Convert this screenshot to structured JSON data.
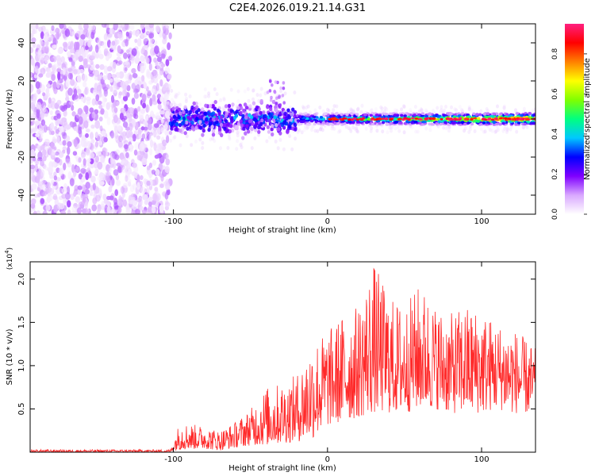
{
  "figure_title": "C2E4.2026.019.21.14.G31",
  "chart_data": [
    {
      "type": "heatmap",
      "panel": "spectrogram",
      "xlabel": "Height of straight line (km)",
      "ylabel": "Frequency (Hz)",
      "xlim": [
        -193,
        135
      ],
      "ylim": [
        -50,
        50
      ],
      "xticks": [
        -100,
        0,
        100
      ],
      "xtick_labels": [
        "-100",
        "0",
        "100"
      ],
      "yticks": [
        -40,
        -20,
        0,
        20,
        40
      ],
      "ytick_labels": [
        "-40",
        "-20",
        "0",
        "20",
        "40"
      ],
      "colorbar": {
        "label": "Normalized spectral amplitude",
        "range": [
          0.0,
          0.95
        ],
        "ticks": [
          0.0,
          0.2,
          0.4,
          0.6,
          0.8
        ],
        "tick_labels": [
          "0.0",
          "0.2",
          "0.4",
          "0.6",
          "0.8"
        ],
        "colormap": [
          "#ffffff",
          "#d9a8ff",
          "#7f00ff",
          "#0000ff",
          "#00c8ff",
          "#00ff80",
          "#80ff00",
          "#ffff00",
          "#ff8000",
          "#ff0000",
          "#ff2080"
        ]
      },
      "regions": [
        {
          "name": "noise",
          "x_range": [
            -193,
            -102
          ],
          "freq_range": [
            -50,
            50
          ],
          "amplitude": [
            0.02,
            0.15
          ]
        },
        {
          "name": "onset",
          "x_range": [
            -102,
            -20
          ],
          "center_freq": 0,
          "half_width_hz": 8,
          "amplitude": [
            0.1,
            0.45
          ]
        },
        {
          "name": "carrier",
          "x_range": [
            -20,
            135
          ],
          "center_freq": 0,
          "half_width_hz": 3,
          "amplitude": [
            0.4,
            0.95
          ]
        }
      ]
    },
    {
      "type": "line",
      "panel": "snr",
      "xlabel": "Height of straight line (km)",
      "ylabel": "SNR (10 * v/v)",
      "scale_label": "(x10",
      "scale_exponent": "4",
      "xlim": [
        -193,
        135
      ],
      "ylim": [
        0,
        2.2
      ],
      "xticks": [
        -100,
        0,
        100
      ],
      "xtick_labels": [
        "-100",
        "0",
        "100"
      ],
      "yticks": [
        0.5,
        1.0,
        1.5,
        2.0
      ],
      "ytick_labels": [
        "0.5",
        "1.0",
        "1.5",
        "2.0"
      ],
      "line_color": "#ff2a2a",
      "envelope": {
        "x": [
          -193,
          -102,
          -96,
          -80,
          -70,
          -60,
          -50,
          -40,
          -30,
          -20,
          -10,
          0,
          10,
          20,
          30,
          40,
          50,
          60,
          70,
          80,
          90,
          100,
          110,
          120,
          135
        ],
        "low": [
          0.0,
          0.0,
          0.03,
          0.04,
          0.02,
          0.05,
          0.08,
          0.08,
          0.1,
          0.12,
          0.15,
          0.3,
          0.35,
          0.4,
          0.45,
          0.45,
          0.45,
          0.5,
          0.5,
          0.45,
          0.45,
          0.45,
          0.5,
          0.45,
          0.45
        ],
        "high": [
          0.03,
          0.03,
          0.35,
          0.3,
          0.25,
          0.35,
          0.5,
          0.75,
          0.8,
          0.9,
          1.3,
          1.4,
          1.6,
          1.7,
          2.2,
          1.8,
          1.7,
          1.95,
          1.7,
          1.6,
          1.7,
          1.65,
          1.5,
          1.45,
          1.2
        ]
      }
    }
  ]
}
